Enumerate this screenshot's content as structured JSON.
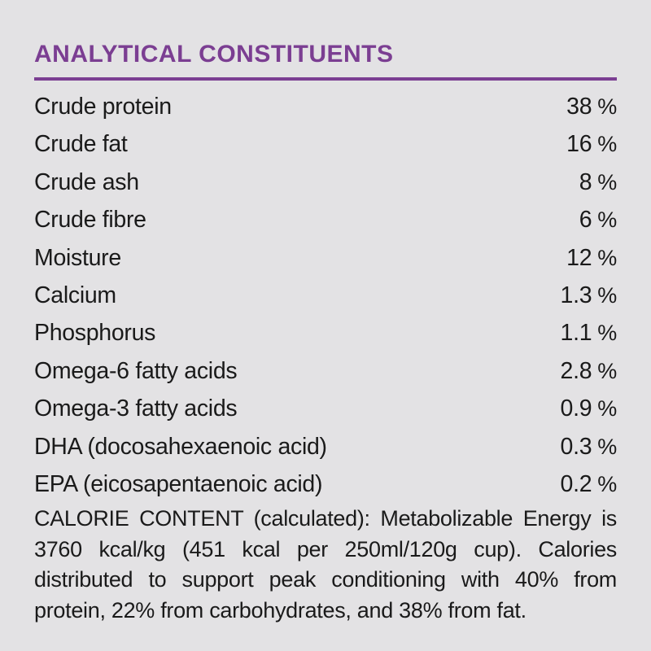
{
  "page": {
    "background_color": "#e3e2e4",
    "accent_color": "#7b3e92",
    "text_color": "#1a1a1a"
  },
  "header": {
    "title": "ANALYTICAL CONSTITUENTS"
  },
  "constituents": {
    "rows": [
      {
        "label": "Crude protein",
        "value": "38",
        "unit": "%"
      },
      {
        "label": "Crude fat",
        "value": "16",
        "unit": "%"
      },
      {
        "label": "Crude ash",
        "value": "8",
        "unit": "%"
      },
      {
        "label": "Crude fibre",
        "value": "6",
        "unit": "%"
      },
      {
        "label": "Moisture",
        "value": "12",
        "unit": "%"
      },
      {
        "label": "Calcium",
        "value": "1.3",
        "unit": "%"
      },
      {
        "label": "Phosphorus",
        "value": "1.1",
        "unit": "%"
      },
      {
        "label": "Omega-6 fatty acids",
        "value": "2.8",
        "unit": "%"
      },
      {
        "label": "Omega-3 fatty acids",
        "value": "0.9",
        "unit": "%"
      },
      {
        "label": "DHA (docosahexaenoic acid)",
        "value": "0.3",
        "unit": "%"
      },
      {
        "label": "EPA (eicosapentaenoic acid)",
        "value": "0.2",
        "unit": "%"
      }
    ]
  },
  "calorie_content": {
    "text": "CALORIE CONTENT (calculated): Metabolizable Energy is 3760 kcal/kg (451 kcal per 250ml/120g cup). Calories distributed to support peak conditioning with 40% from protein, 22% from carbohydrates, and 38% from fat."
  }
}
